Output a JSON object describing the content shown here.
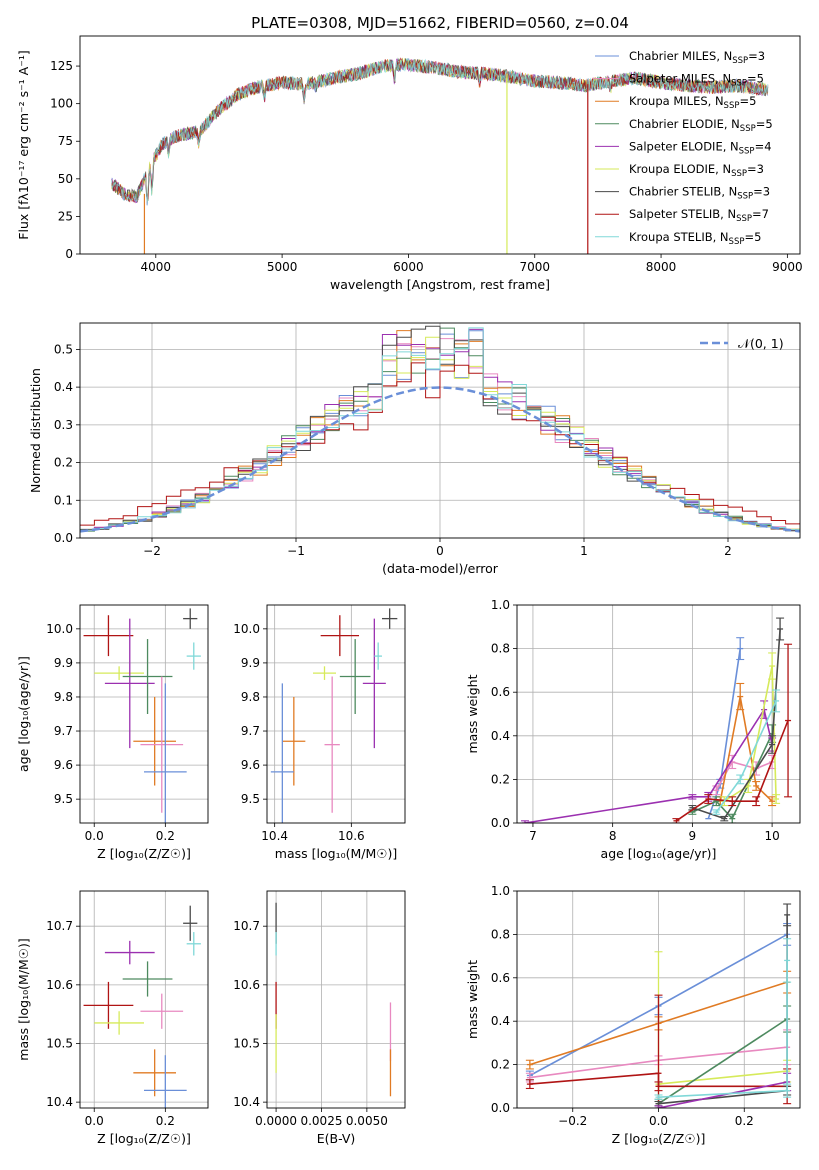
{
  "figure_title": "PLATE=0308, MJD=51662, FIBERID=0560, z=0.04",
  "colors": {
    "Chabrier MILES": "#6a8fd8",
    "Salpeter MILES": "#e889c0",
    "Kroupa MILES": "#e07b24",
    "Chabrier ELODIE": "#4d8a5f",
    "Salpeter ELODIE": "#9b30b0",
    "Kroupa ELODIE": "#d6ea5a",
    "Chabrier STELIB": "#4a4a4a",
    "Salpeter STELIB": "#b01414",
    "Kroupa STELIB": "#80d8d8",
    "normal": "#6a8fd8"
  },
  "chart_data": [
    {
      "id": "spectrum",
      "type": "line",
      "xlabel": "wavelength [Angstrom, rest frame]",
      "ylabel": "Flux [fλ10⁻¹⁷ erg cm⁻² s⁻¹ A⁻¹]",
      "xlim": [
        3400,
        9100
      ],
      "ylim": [
        0,
        145
      ],
      "xticks": [
        "4000",
        "5000",
        "6000",
        "7000",
        "8000",
        "9000"
      ],
      "yticks": [
        "0",
        "25",
        "50",
        "75",
        "100",
        "125"
      ],
      "legend_position": "top-right",
      "legend": [
        "Chabrier MILES, N_SSP=3",
        "Salpeter MILES, N_SSP=5",
        "Kroupa MILES, N_SSP=5",
        "Chabrier ELODIE, N_SSP=5",
        "Salpeter ELODIE, N_SSP=4",
        "Kroupa ELODIE, N_SSP=3",
        "Chabrier STELIB, N_SSP=3",
        "Salpeter STELIB, N_SSP=7",
        "Kroupa STELIB, N_SSP=5"
      ],
      "continuum": [
        [
          3650,
          47
        ],
        [
          3750,
          40
        ],
        [
          3850,
          38
        ],
        [
          3950,
          58
        ],
        [
          4050,
          73
        ],
        [
          4150,
          78
        ],
        [
          4250,
          80
        ],
        [
          4350,
          82
        ],
        [
          4500,
          96
        ],
        [
          4650,
          106
        ],
        [
          4800,
          111
        ],
        [
          5000,
          114
        ],
        [
          5200,
          113
        ],
        [
          5400,
          117
        ],
        [
          5600,
          120
        ],
        [
          5800,
          125
        ],
        [
          6000,
          126
        ],
        [
          6200,
          124
        ],
        [
          6400,
          121
        ],
        [
          6600,
          120
        ],
        [
          6800,
          118
        ],
        [
          7000,
          115
        ],
        [
          7200,
          114
        ],
        [
          7400,
          112
        ],
        [
          7600,
          115
        ],
        [
          7800,
          117
        ],
        [
          8000,
          114
        ],
        [
          8200,
          112
        ],
        [
          8400,
          111
        ],
        [
          8600,
          112
        ],
        [
          8850,
          109
        ]
      ],
      "drop_lines": [
        {
          "series": "Kroupa MILES",
          "x": 3910,
          "from": 40,
          "to": 0
        },
        {
          "series": "Kroupa ELODIE",
          "x": 6780,
          "from": 120,
          "to": 0
        },
        {
          "series": "Salpeter STELIB",
          "x": 7420,
          "from": 113,
          "to": 0
        }
      ],
      "series": [
        "Chabrier MILES",
        "Salpeter MILES",
        "Kroupa MILES",
        "Chabrier ELODIE",
        "Salpeter ELODIE",
        "Kroupa ELODIE",
        "Chabrier STELIB",
        "Salpeter STELIB",
        "Kroupa STELIB"
      ]
    },
    {
      "id": "residuals",
      "type": "line",
      "xlabel": "(data-model)/error",
      "ylabel": "Normed distribution",
      "xlim": [
        -2.5,
        2.5
      ],
      "ylim": [
        0,
        0.57
      ],
      "xticks": [
        "−2",
        "−1",
        "0",
        "1",
        "2"
      ],
      "yticks": [
        "0.0",
        "0.1",
        "0.2",
        "0.3",
        "0.4",
        "0.5"
      ],
      "grid": true,
      "legend_position": "top-right",
      "legend": [
        "𝒩(0, 1)"
      ],
      "bin_width": 0.1
    },
    {
      "id": "age_vs_Z",
      "type": "scatter",
      "xlabel": "Z [log₁₀(Z/Z☉)]",
      "ylabel": "age  [log₁₀(age/yr)]",
      "xlim": [
        -0.04,
        0.32
      ],
      "ylim": [
        9.43,
        10.07
      ],
      "xticks": [
        "0.0",
        "0.2"
      ],
      "yticks": [
        "9.5",
        "9.6",
        "9.7",
        "9.8",
        "9.9",
        "10.0"
      ],
      "grid": true,
      "points": [
        {
          "series": "Salpeter STELIB",
          "x": 0.04,
          "xerr": 0.07,
          "y": 9.98,
          "yerr": 0.06
        },
        {
          "series": "Kroupa ELODIE",
          "x": 0.07,
          "xerr": 0.07,
          "y": 9.87,
          "yerr": 0.02
        },
        {
          "series": "Salpeter ELODIE",
          "x": 0.1,
          "xerr": 0.07,
          "y": 9.84,
          "yerr": 0.19
        },
        {
          "series": "Chabrier ELODIE",
          "x": 0.15,
          "xerr": 0.07,
          "y": 9.86,
          "yerr": 0.11
        },
        {
          "series": "Kroupa MILES",
          "x": 0.17,
          "xerr": 0.06,
          "y": 9.67,
          "yerr": 0.13
        },
        {
          "series": "Salpeter MILES",
          "x": 0.19,
          "xerr": 0.06,
          "y": 9.66,
          "yerr": 0.2
        },
        {
          "series": "Chabrier MILES",
          "x": 0.2,
          "xerr": 0.06,
          "y": 9.58,
          "yerr": 0.26
        },
        {
          "series": "Chabrier STELIB",
          "x": 0.27,
          "xerr": 0.02,
          "y": 10.03,
          "yerr": 0.03
        },
        {
          "series": "Kroupa STELIB",
          "x": 0.28,
          "xerr": 0.02,
          "y": 9.92,
          "yerr": 0.04
        }
      ]
    },
    {
      "id": "age_vs_mass",
      "type": "scatter",
      "xlabel": "mass [log₁₀(M/M☉)]",
      "ylabel": "",
      "xlim": [
        10.38,
        10.74
      ],
      "ylim": [
        9.43,
        10.07
      ],
      "xticks": [
        "10.4",
        "10.6"
      ],
      "yticks": [
        "9.5",
        "9.6",
        "9.7",
        "9.8",
        "9.9",
        "10.0"
      ],
      "grid": true,
      "points": [
        {
          "series": "Salpeter STELIB",
          "x": 10.57,
          "xerr": 0.05,
          "y": 9.98,
          "yerr": 0.06
        },
        {
          "series": "Kroupa ELODIE",
          "x": 10.53,
          "xerr": 0.03,
          "y": 9.87,
          "yerr": 0.02
        },
        {
          "series": "Salpeter ELODIE",
          "x": 10.66,
          "xerr": 0.03,
          "y": 9.84,
          "yerr": 0.19
        },
        {
          "series": "Chabrier ELODIE",
          "x": 10.61,
          "xerr": 0.04,
          "y": 9.86,
          "yerr": 0.11
        },
        {
          "series": "Kroupa MILES",
          "x": 10.45,
          "xerr": 0.03,
          "y": 9.67,
          "yerr": 0.13
        },
        {
          "series": "Salpeter MILES",
          "x": 10.55,
          "xerr": 0.02,
          "y": 9.66,
          "yerr": 0.2
        },
        {
          "series": "Chabrier MILES",
          "x": 10.42,
          "xerr": 0.03,
          "y": 9.58,
          "yerr": 0.26
        },
        {
          "series": "Chabrier STELIB",
          "x": 10.7,
          "xerr": 0.02,
          "y": 10.03,
          "yerr": 0.03
        },
        {
          "series": "Kroupa STELIB",
          "x": 10.67,
          "xerr": 0.01,
          "y": 9.92,
          "yerr": 0.04
        }
      ]
    },
    {
      "id": "mass_weight_vs_age",
      "type": "line",
      "xlabel": "age  [log₁₀(age/yr)]",
      "ylabel": "mass weight",
      "xlim": [
        6.8,
        10.35
      ],
      "ylim": [
        0,
        1.0
      ],
      "xticks": [
        "7",
        "8",
        "9",
        "10"
      ],
      "yticks": [
        "0.0",
        "0.2",
        "0.4",
        "0.6",
        "0.8",
        "1.0"
      ],
      "grid": true,
      "series": [
        {
          "name": "Chabrier MILES",
          "points": [
            [
              9.2,
              0.02
            ],
            [
              9.35,
              0.18
            ],
            [
              9.6,
              0.8
            ]
          ],
          "err": [
            0,
            0.02,
            0.05
          ]
        },
        {
          "name": "Salpeter MILES",
          "points": [
            [
              9.3,
              0.15
            ],
            [
              9.5,
              0.28
            ],
            [
              9.8,
              0.25
            ],
            [
              10.0,
              0.28
            ]
          ],
          "err": [
            0.02,
            0.03,
            0.03,
            0.03
          ]
        },
        {
          "name": "Kroupa MILES",
          "points": [
            [
              9.35,
              0.1
            ],
            [
              9.6,
              0.58
            ],
            [
              9.8,
              0.17
            ],
            [
              10.0,
              0.1
            ]
          ],
          "err": [
            0.02,
            0.06,
            0.02,
            0.02
          ]
        },
        {
          "name": "Chabrier ELODIE",
          "points": [
            [
              9.0,
              0.05
            ],
            [
              9.3,
              0.1
            ],
            [
              9.5,
              0.02
            ],
            [
              10.0,
              0.41
            ]
          ],
          "err": [
            0.01,
            0.02,
            0.02,
            0.04
          ]
        },
        {
          "name": "Salpeter ELODIE",
          "points": [
            [
              6.9,
              0.0
            ],
            [
              9.0,
              0.12
            ],
            [
              9.2,
              0.12
            ],
            [
              9.9,
              0.52
            ],
            [
              10.0,
              0.36
            ]
          ],
          "err": [
            0.01,
            0.01,
            0.02,
            0.04,
            0.03
          ]
        },
        {
          "name": "Kroupa ELODIE",
          "points": [
            [
              9.4,
              0.1
            ],
            [
              9.7,
              0.17
            ],
            [
              10.0,
              0.72
            ],
            [
              10.05,
              0.11
            ]
          ],
          "err": [
            0.02,
            0.03,
            0.06,
            0.02
          ]
        },
        {
          "name": "Chabrier STELIB",
          "points": [
            [
              9.0,
              0.07
            ],
            [
              9.4,
              0.02
            ],
            [
              10.0,
              0.36
            ],
            [
              10.1,
              0.89
            ]
          ],
          "err": [
            0.01,
            0.01,
            0.04,
            0.05
          ]
        },
        {
          "name": "Salpeter STELIB",
          "points": [
            [
              8.8,
              0.01
            ],
            [
              9.2,
              0.11
            ],
            [
              9.5,
              0.1
            ],
            [
              9.8,
              0.1
            ],
            [
              10.2,
              0.47
            ]
          ],
          "err": [
            0.01,
            0.02,
            0.02,
            0.02,
            0.35
          ]
        },
        {
          "name": "Kroupa STELIB",
          "points": [
            [
              9.3,
              0.05
            ],
            [
              9.6,
              0.2
            ],
            [
              10.05,
              0.56
            ]
          ],
          "err": [
            0.01,
            0.02,
            0.05
          ]
        }
      ]
    },
    {
      "id": "mass_vs_Z",
      "type": "scatter",
      "xlabel": "Z [log₁₀(Z/Z☉)]",
      "ylabel": "mass [log₁₀(M/M☉)]",
      "xlim": [
        -0.04,
        0.32
      ],
      "ylim": [
        10.39,
        10.76
      ],
      "xticks": [
        "0.0",
        "0.2"
      ],
      "yticks": [
        "10.4",
        "10.5",
        "10.6",
        "10.7"
      ],
      "grid": true,
      "points": [
        {
          "series": "Salpeter STELIB",
          "x": 0.04,
          "xerr": 0.07,
          "y": 10.565,
          "yerr": 0.04
        },
        {
          "series": "Kroupa ELODIE",
          "x": 0.07,
          "xerr": 0.07,
          "y": 10.535,
          "yerr": 0.02
        },
        {
          "series": "Salpeter ELODIE",
          "x": 0.1,
          "xerr": 0.07,
          "y": 10.655,
          "yerr": 0.02
        },
        {
          "series": "Chabrier ELODIE",
          "x": 0.15,
          "xerr": 0.07,
          "y": 10.61,
          "yerr": 0.03
        },
        {
          "series": "Kroupa MILES",
          "x": 0.17,
          "xerr": 0.06,
          "y": 10.45,
          "yerr": 0.04
        },
        {
          "series": "Salpeter MILES",
          "x": 0.19,
          "xerr": 0.06,
          "y": 10.555,
          "yerr": 0.03
        },
        {
          "series": "Chabrier MILES",
          "x": 0.2,
          "xerr": 0.06,
          "y": 10.42,
          "yerr": 0.06
        },
        {
          "series": "Chabrier STELIB",
          "x": 0.27,
          "xerr": 0.02,
          "y": 10.705,
          "yerr": 0.03
        },
        {
          "series": "Kroupa STELIB",
          "x": 0.28,
          "xerr": 0.02,
          "y": 10.67,
          "yerr": 0.02
        }
      ]
    },
    {
      "id": "mass_vs_ebv",
      "type": "scatter",
      "xlabel": "E(B-V)",
      "ylabel": "",
      "xlim": [
        -0.0005,
        0.0071
      ],
      "ylim": [
        10.39,
        10.76
      ],
      "xticks": [
        "0.0000",
        "0.0025",
        "0.0050"
      ],
      "yticks": [
        "10.4",
        "10.5",
        "10.6",
        "10.7"
      ],
      "grid": true,
      "points": [
        {
          "series": "Chabrier STELIB",
          "x": 0.0,
          "xerr": 0.0,
          "y": 10.705,
          "yerr": 0.035
        },
        {
          "series": "Kroupa STELIB",
          "x": 0.0,
          "xerr": 0.0,
          "y": 10.67,
          "yerr": 0.02
        },
        {
          "series": "Salpeter STELIB",
          "x": 0.0,
          "xerr": 0.0,
          "y": 10.565,
          "yerr": 0.04
        },
        {
          "series": "Kroupa ELODIE",
          "x": 0.0,
          "xerr": 0.0,
          "y": 10.5,
          "yerr": 0.05
        },
        {
          "series": "Salpeter MILES",
          "x": 0.0063,
          "xerr": 0.0,
          "y": 10.52,
          "yerr": 0.05
        },
        {
          "series": "Kroupa MILES",
          "x": 0.0063,
          "xerr": 0.0,
          "y": 10.45,
          "yerr": 0.04
        }
      ]
    },
    {
      "id": "mass_weight_vs_Z",
      "type": "line",
      "xlabel": "Z [log₁₀(Z/Z☉)]",
      "ylabel": "mass weight",
      "xlim": [
        -0.33,
        0.33
      ],
      "ylim": [
        0,
        1.0
      ],
      "xticks": [
        "−0.2",
        "0.0",
        "0.2"
      ],
      "yticks": [
        "0.0",
        "0.2",
        "0.4",
        "0.6",
        "0.8",
        "1.0"
      ],
      "grid": true,
      "series": [
        {
          "name": "Chabrier MILES",
          "points": [
            [
              -0.3,
              0.15
            ],
            [
              0.0,
              0.47
            ],
            [
              0.3,
              0.8
            ]
          ],
          "err": [
            0.02,
            0.04,
            0.05
          ]
        },
        {
          "name": "Kroupa MILES",
          "points": [
            [
              -0.3,
              0.2
            ],
            [
              0.0,
              0.39
            ],
            [
              0.3,
              0.58
            ]
          ],
          "err": [
            0.02,
            0.03,
            0.05
          ]
        },
        {
          "name": "Salpeter MILES",
          "points": [
            [
              -0.3,
              0.14
            ],
            [
              0.0,
              0.22
            ],
            [
              0.3,
              0.28
            ]
          ],
          "err": [
            0.02,
            0.02,
            0.08
          ]
        },
        {
          "name": "Kroupa ELODIE",
          "points": [
            [
              0.0,
              0.11
            ],
            [
              0.3,
              0.17
            ]
          ],
          "err": [
            0.61,
            0.05
          ]
        },
        {
          "name": "Chabrier ELODIE",
          "points": [
            [
              0.0,
              0.02
            ],
            [
              0.3,
              0.41
            ]
          ],
          "err": [
            0.02,
            0.06
          ]
        },
        {
          "name": "Salpeter STELIB",
          "points": [
            [
              -0.3,
              0.11
            ],
            [
              0.0,
              0.16
            ],
            [
              0.0,
              0.1
            ],
            [
              0.3,
              0.1
            ]
          ],
          "err": [
            0.02,
            0.36,
            0.02,
            0.08
          ]
        },
        {
          "name": "Chabrier STELIB",
          "points": [
            [
              0.0,
              0.02
            ],
            [
              0.3,
              0.08
            ],
            [
              0.3,
              0.89
            ]
          ],
          "err": [
            0.01,
            0.02,
            0.05
          ]
        },
        {
          "name": "Salpeter ELODIE",
          "points": [
            [
              0.0,
              0.0
            ],
            [
              0.3,
              0.12
            ]
          ],
          "err": [
            0.01,
            0.04
          ]
        },
        {
          "name": "Kroupa STELIB",
          "points": [
            [
              0.0,
              0.05
            ],
            [
              0.3,
              0.08
            ],
            [
              0.3,
              0.68
            ]
          ],
          "err": [
            0.01,
            0.03,
            0.1
          ]
        }
      ]
    }
  ]
}
